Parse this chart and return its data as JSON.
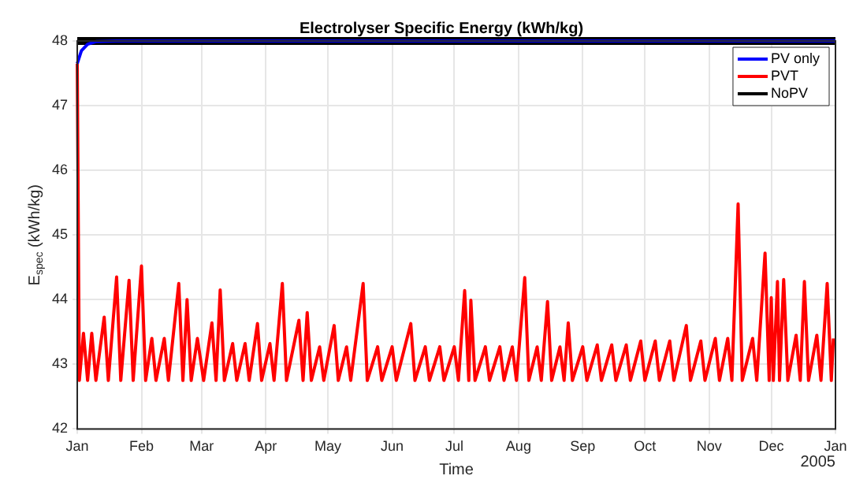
{
  "chart_data": {
    "type": "line",
    "title": "Electrolyser Specific Energy (kWh/kg)",
    "xlabel": "Time",
    "ylabel": "E$_{spec}$ (kWh/kg)",
    "xlim": [
      "2004-01-01",
      "2005-01-01"
    ],
    "xticks": [
      {
        "value": "2004-01-01",
        "label": "Jan"
      },
      {
        "value": "2004-02-01",
        "label": "Feb"
      },
      {
        "value": "2004-03-01",
        "label": "Mar"
      },
      {
        "value": "2004-04-01",
        "label": "Apr"
      },
      {
        "value": "2004-05-01",
        "label": "May"
      },
      {
        "value": "2004-06-01",
        "label": "Jun"
      },
      {
        "value": "2004-07-01",
        "label": "Jul"
      },
      {
        "value": "2004-08-01",
        "label": "Aug"
      },
      {
        "value": "2004-09-01",
        "label": "Sep"
      },
      {
        "value": "2004-10-01",
        "label": "Oct"
      },
      {
        "value": "2004-11-01",
        "label": "Nov"
      },
      {
        "value": "2004-12-01",
        "label": "Dec"
      },
      {
        "value": "2005-01-01",
        "label": "Jan"
      }
    ],
    "ylim": [
      42,
      48
    ],
    "yticks": [
      42,
      43,
      44,
      45,
      46,
      47,
      48
    ],
    "grid": true,
    "legend": "top right",
    "annotations": [
      "2005"
    ],
    "series": [
      {
        "name": "PV only",
        "color": "#0000ff",
        "x": [
          "2004-01-01",
          "2004-01-03",
          "2004-01-06",
          "2004-01-10",
          "2004-01-20",
          "2005-01-01"
        ],
        "values": [
          47.65,
          47.85,
          47.95,
          47.99,
          48,
          48
        ]
      },
      {
        "name": "PVT",
        "color": "#ff0000",
        "x": [
          "2004-01-01",
          "2004-01-02",
          "2004-01-04",
          "2004-01-06",
          "2004-01-08",
          "2004-01-10",
          "2004-01-14",
          "2004-01-16",
          "2004-01-20",
          "2004-01-22",
          "2004-01-26",
          "2004-01-28",
          "2004-02-01",
          "2004-02-03",
          "2004-02-06",
          "2004-02-08",
          "2004-02-12",
          "2004-02-14",
          "2004-02-19",
          "2004-02-21",
          "2004-02-23",
          "2004-02-25",
          "2004-02-28",
          "2004-03-02",
          "2004-03-06",
          "2004-03-08",
          "2004-03-10",
          "2004-03-12",
          "2004-03-16",
          "2004-03-18",
          "2004-03-22",
          "2004-03-24",
          "2004-03-28",
          "2004-03-30",
          "2004-04-03",
          "2004-04-05",
          "2004-04-09",
          "2004-04-11",
          "2004-04-17",
          "2004-04-19",
          "2004-04-21",
          "2004-04-23",
          "2004-04-27",
          "2004-04-29",
          "2004-05-04",
          "2004-05-06",
          "2004-05-10",
          "2004-05-12",
          "2004-05-18",
          "2004-05-20",
          "2004-05-25",
          "2004-05-27",
          "2004-06-01",
          "2004-06-03",
          "2004-06-10",
          "2004-06-12",
          "2004-06-17",
          "2004-06-19",
          "2004-06-24",
          "2004-06-26",
          "2004-07-01",
          "2004-07-03",
          "2004-07-06",
          "2004-07-08",
          "2004-07-09",
          "2004-07-11",
          "2004-07-16",
          "2004-07-18",
          "2004-07-23",
          "2004-07-25",
          "2004-07-29",
          "2004-07-31",
          "2004-08-04",
          "2004-08-06",
          "2004-08-10",
          "2004-08-12",
          "2004-08-15",
          "2004-08-17",
          "2004-08-21",
          "2004-08-23",
          "2004-08-25",
          "2004-08-27",
          "2004-09-01",
          "2004-09-03",
          "2004-09-08",
          "2004-09-10",
          "2004-09-15",
          "2004-09-17",
          "2004-09-22",
          "2004-09-24",
          "2004-09-29",
          "2004-10-01",
          "2004-10-06",
          "2004-10-08",
          "2004-10-13",
          "2004-10-15",
          "2004-10-21",
          "2004-10-23",
          "2004-10-28",
          "2004-10-30",
          "2004-11-04",
          "2004-11-06",
          "2004-11-10",
          "2004-11-12",
          "2004-11-15",
          "2004-11-17",
          "2004-11-22",
          "2004-11-24",
          "2004-11-28",
          "2004-11-30",
          "2004-12-01",
          "2004-12-02",
          "2004-12-04",
          "2004-12-05",
          "2004-12-07",
          "2004-12-09",
          "2004-12-13",
          "2004-12-15",
          "2004-12-17",
          "2004-12-19",
          "2004-12-23",
          "2004-12-25",
          "2004-12-28",
          "2004-12-30",
          "2004-12-31"
        ],
        "values": [
          47.65,
          42.75,
          43.48,
          42.75,
          43.48,
          42.75,
          43.73,
          42.75,
          44.35,
          42.75,
          44.3,
          42.75,
          44.52,
          42.75,
          43.4,
          42.75,
          43.4,
          42.75,
          44.25,
          42.75,
          44.0,
          42.75,
          43.4,
          42.75,
          43.64,
          42.75,
          44.15,
          42.75,
          43.32,
          42.75,
          43.32,
          42.75,
          43.63,
          42.75,
          43.32,
          42.75,
          44.25,
          42.75,
          43.68,
          42.75,
          43.8,
          42.75,
          43.27,
          42.75,
          43.6,
          42.75,
          43.27,
          42.75,
          44.25,
          42.75,
          43.27,
          42.75,
          43.27,
          42.75,
          43.63,
          42.75,
          43.27,
          42.75,
          43.27,
          42.75,
          43.27,
          42.75,
          44.14,
          42.75,
          43.99,
          42.75,
          43.27,
          42.75,
          43.27,
          42.75,
          43.27,
          42.75,
          44.34,
          42.75,
          43.27,
          42.75,
          43.97,
          42.75,
          43.27,
          42.75,
          43.64,
          42.75,
          43.27,
          42.75,
          43.3,
          42.75,
          43.3,
          42.75,
          43.3,
          42.75,
          43.36,
          42.75,
          43.36,
          42.75,
          43.36,
          42.75,
          43.6,
          42.75,
          43.36,
          42.75,
          43.4,
          42.75,
          43.4,
          42.75,
          45.48,
          42.75,
          43.4,
          42.75,
          44.72,
          42.75,
          44.03,
          42.75,
          44.28,
          42.75,
          44.31,
          42.75,
          43.45,
          42.75,
          44.28,
          42.75,
          43.45,
          42.75,
          44.25,
          42.75,
          43.4
        ]
      },
      {
        "name": "NoPV",
        "color": "#000000",
        "x": [
          "2004-01-01",
          "2005-01-01"
        ],
        "values": [
          48,
          48
        ]
      }
    ]
  }
}
